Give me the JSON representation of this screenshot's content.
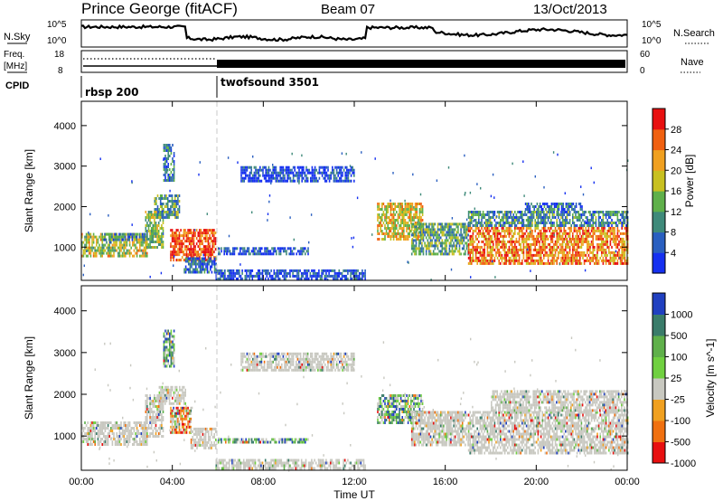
{
  "header": {
    "station": "Prince George (fitACF)",
    "beam": "Beam 07",
    "date": "13/Oct/2013"
  },
  "summary_panel": {
    "nsky_label": "N.Sky",
    "nsky_ticks": [
      "10^5",
      "10^0"
    ],
    "nsearch_label": "N.Search",
    "nsearch_ticks": [
      "10^5",
      "10^0"
    ],
    "freq_label": "Freq.",
    "freq_unit": "[MHz]",
    "freq_ticks": [
      "18",
      "8"
    ],
    "nave_label": "Nave",
    "nave_ticks": [
      "60",
      "0"
    ],
    "cpid_label": "CPID",
    "cpid_segments": [
      {
        "name": "rbsp 200",
        "start_hour": 0,
        "end_hour": 5.95
      },
      {
        "name": "twofsound 3501",
        "start_hour": 5.95,
        "end_hour": 24
      }
    ]
  },
  "chart_data": [
    {
      "type": "heatmap",
      "name": "power",
      "ylabel": "Slant Range [km]",
      "y_ticks": [
        1000,
        2000,
        3000,
        4000
      ],
      "ylim": [
        180,
        4600
      ],
      "x_ticks": [
        "00:00",
        "04:00",
        "08:00",
        "12:00",
        "16:00",
        "20:00",
        "00:00"
      ],
      "xlim_hours": [
        0,
        24
      ],
      "colorbar": {
        "label": "Power [dB]",
        "ticks": [
          "4",
          "8",
          "12",
          "16",
          "20",
          "24",
          "28"
        ],
        "colors": [
          "#1530f0",
          "#2a5fc0",
          "#3f8a7a",
          "#5fb04a",
          "#c8c020",
          "#f0a020",
          "#f06010",
          "#e81010"
        ]
      },
      "regions": [
        {
          "t0": 0.0,
          "t1": 2.9,
          "r0": 800,
          "r1": 1350,
          "level": 0.55
        },
        {
          "t0": 1.0,
          "t1": 2.8,
          "r0": 1150,
          "r1": 1350,
          "level": 0.3
        },
        {
          "t0": 2.8,
          "t1": 3.6,
          "r0": 1000,
          "r1": 1900,
          "level": 0.45
        },
        {
          "t0": 3.2,
          "t1": 4.3,
          "r0": 1700,
          "r1": 2300,
          "level": 0.35
        },
        {
          "t0": 3.6,
          "t1": 4.1,
          "r0": 2650,
          "r1": 3550,
          "level": 0.25
        },
        {
          "t0": 3.9,
          "t1": 5.9,
          "r0": 650,
          "r1": 1450,
          "level": 0.85
        },
        {
          "t0": 4.5,
          "t1": 5.9,
          "r0": 400,
          "r1": 750,
          "level": 0.2
        },
        {
          "t0": 6.0,
          "t1": 10.0,
          "r0": 850,
          "r1": 1000,
          "level": 0.15
        },
        {
          "t0": 5.9,
          "t1": 12.5,
          "r0": 200,
          "r1": 450,
          "level": 0.12
        },
        {
          "t0": 7.0,
          "t1": 12.0,
          "r0": 2600,
          "r1": 3000,
          "level": 0.12
        },
        {
          "t0": 13.0,
          "t1": 15.0,
          "r0": 1200,
          "r1": 2100,
          "level": 0.6
        },
        {
          "t0": 14.5,
          "t1": 17.0,
          "r0": 800,
          "r1": 1600,
          "level": 0.4
        },
        {
          "t0": 17.0,
          "t1": 24.0,
          "r0": 600,
          "r1": 1500,
          "level": 0.75
        },
        {
          "t0": 17.0,
          "t1": 24.0,
          "r0": 1500,
          "r1": 1900,
          "level": 0.3
        },
        {
          "t0": 19.5,
          "t1": 22.0,
          "r0": 1900,
          "r1": 2100,
          "level": 0.2
        }
      ]
    },
    {
      "type": "heatmap",
      "name": "velocity",
      "ylabel": "Slant Range [km]",
      "y_ticks": [
        1000,
        2000,
        3000,
        4000
      ],
      "ylim": [
        180,
        4600
      ],
      "x_ticks": [
        "00:00",
        "04:00",
        "08:00",
        "12:00",
        "16:00",
        "20:00",
        "00:00"
      ],
      "xlim_hours": [
        0,
        24
      ],
      "xlabel": "Time UT",
      "colorbar": {
        "label": "Velocity [m s^-1]",
        "ticks": [
          "1000",
          "500",
          "100",
          "25",
          "-25",
          "-100",
          "-500",
          "-1000"
        ],
        "colors": [
          "#2040c0",
          "#3a7c6a",
          "#5fb04a",
          "#70d040",
          "#c8c8c0",
          "#f0a020",
          "#f07010",
          "#e81010"
        ]
      },
      "regions": [
        {
          "t0": 0.0,
          "t1": 2.9,
          "r0": 800,
          "r1": 1350,
          "level": 0.5
        },
        {
          "t0": 2.8,
          "t1": 3.6,
          "r0": 1000,
          "r1": 2000,
          "level": 0.5
        },
        {
          "t0": 3.4,
          "t1": 4.6,
          "r0": 1800,
          "r1": 2200,
          "level": 0.5
        },
        {
          "t0": 3.6,
          "t1": 4.1,
          "r0": 2650,
          "r1": 3550,
          "level": 0.25
        },
        {
          "t0": 3.9,
          "t1": 4.8,
          "r0": 1100,
          "r1": 1700,
          "level": 0.75
        },
        {
          "t0": 4.8,
          "t1": 5.9,
          "r0": 700,
          "r1": 1200,
          "level": 0.5
        },
        {
          "t0": 6.0,
          "t1": 10.0,
          "r0": 850,
          "r1": 950,
          "level": 0.35
        },
        {
          "t0": 5.9,
          "t1": 12.5,
          "r0": 200,
          "r1": 450,
          "level": 0.5
        },
        {
          "t0": 7.0,
          "t1": 12.0,
          "r0": 2600,
          "r1": 3000,
          "level": 0.5
        },
        {
          "t0": 13.0,
          "t1": 15.0,
          "r0": 1300,
          "r1": 2000,
          "level": 0.3
        },
        {
          "t0": 14.5,
          "t1": 17.0,
          "r0": 800,
          "r1": 1600,
          "level": 0.5
        },
        {
          "t0": 17.0,
          "t1": 24.0,
          "r0": 600,
          "r1": 1600,
          "level": 0.5
        },
        {
          "t0": 18.0,
          "t1": 24.0,
          "r0": 1600,
          "r1": 2100,
          "level": 0.5
        }
      ]
    }
  ]
}
